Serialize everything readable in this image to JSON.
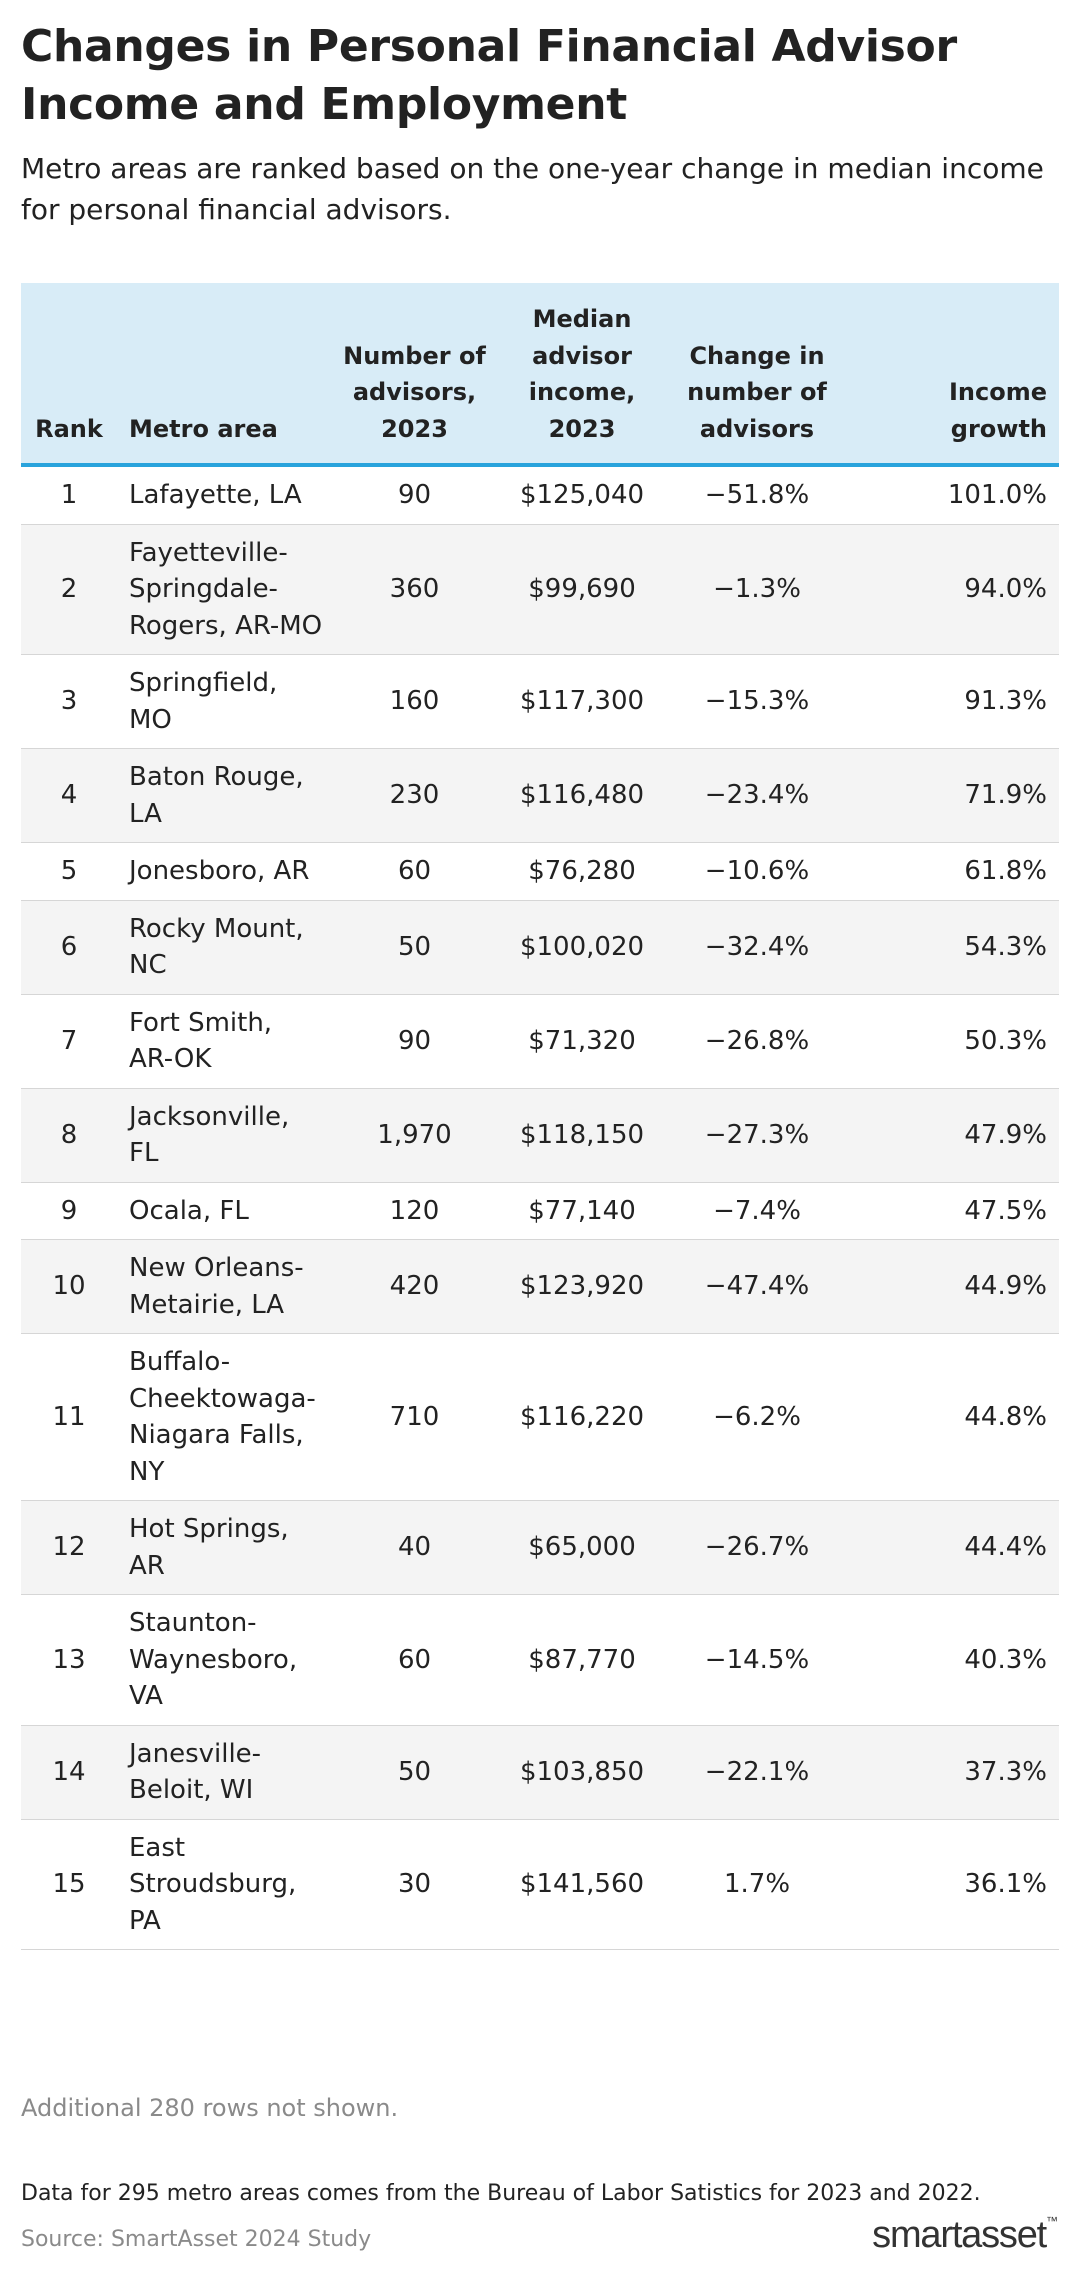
{
  "title": "Changes in Personal Financial Advisor Income and Employment",
  "subtitle": "Metro areas are ranked based on the one-year change in median income for personal financial advisors.",
  "columns": [
    "Rank",
    "Metro area",
    "Number of advisors, 2023",
    "Median advisor income, 2023",
    "Change in number of advisors",
    "Income growth"
  ],
  "chart_data": {
    "type": "table",
    "title": "Changes in Personal Financial Advisor Income and Employment",
    "columns": [
      "Rank",
      "Metro area",
      "Number of advisors, 2023",
      "Median advisor income, 2023",
      "Change in number of advisors",
      "Income growth"
    ],
    "rows": [
      [
        "1",
        "Lafayette, LA",
        "90",
        "$125,040",
        "−51.8%",
        "101.0%"
      ],
      [
        "2",
        "Fayetteville-Springdale-Rogers, AR-MO",
        "360",
        "$99,690",
        "−1.3%",
        "94.0%"
      ],
      [
        "3",
        "Springfield, MO",
        "160",
        "$117,300",
        "−15.3%",
        "91.3%"
      ],
      [
        "4",
        "Baton Rouge, LA",
        "230",
        "$116,480",
        "−23.4%",
        "71.9%"
      ],
      [
        "5",
        "Jonesboro, AR",
        "60",
        "$76,280",
        "−10.6%",
        "61.8%"
      ],
      [
        "6",
        "Rocky Mount, NC",
        "50",
        "$100,020",
        "−32.4%",
        "54.3%"
      ],
      [
        "7",
        "Fort Smith, AR-OK",
        "90",
        "$71,320",
        "−26.8%",
        "50.3%"
      ],
      [
        "8",
        "Jacksonville, FL",
        "1,970",
        "$118,150",
        "−27.3%",
        "47.9%"
      ],
      [
        "9",
        "Ocala, FL",
        "120",
        "$77,140",
        "−7.4%",
        "47.5%"
      ],
      [
        "10",
        "New Orleans-Metairie, LA",
        "420",
        "$123,920",
        "−47.4%",
        "44.9%"
      ],
      [
        "11",
        "Buffalo-Cheektowaga-Niagara Falls, NY",
        "710",
        "$116,220",
        "−6.2%",
        "44.8%"
      ],
      [
        "12",
        "Hot Springs, AR",
        "40",
        "$65,000",
        "−26.7%",
        "44.4%"
      ],
      [
        "13",
        "Staunton-Waynesboro, VA",
        "60",
        "$87,770",
        "−14.5%",
        "40.3%"
      ],
      [
        "14",
        "Janesville-Beloit, WI",
        "50",
        "$103,850",
        "−22.1%",
        "37.3%"
      ],
      [
        "15",
        "East Stroudsburg, PA",
        "30",
        "$141,560",
        "1.7%",
        "36.1%"
      ]
    ]
  },
  "more_rows_note": "Additional 280 rows not shown.",
  "data_note": "Data for 295 metro areas comes from the Bureau of Labor Satistics for 2023 and 2022.",
  "source": "Source: SmartAsset 2024 Study",
  "logo": {
    "text": "smartasset",
    "mark": "™"
  }
}
